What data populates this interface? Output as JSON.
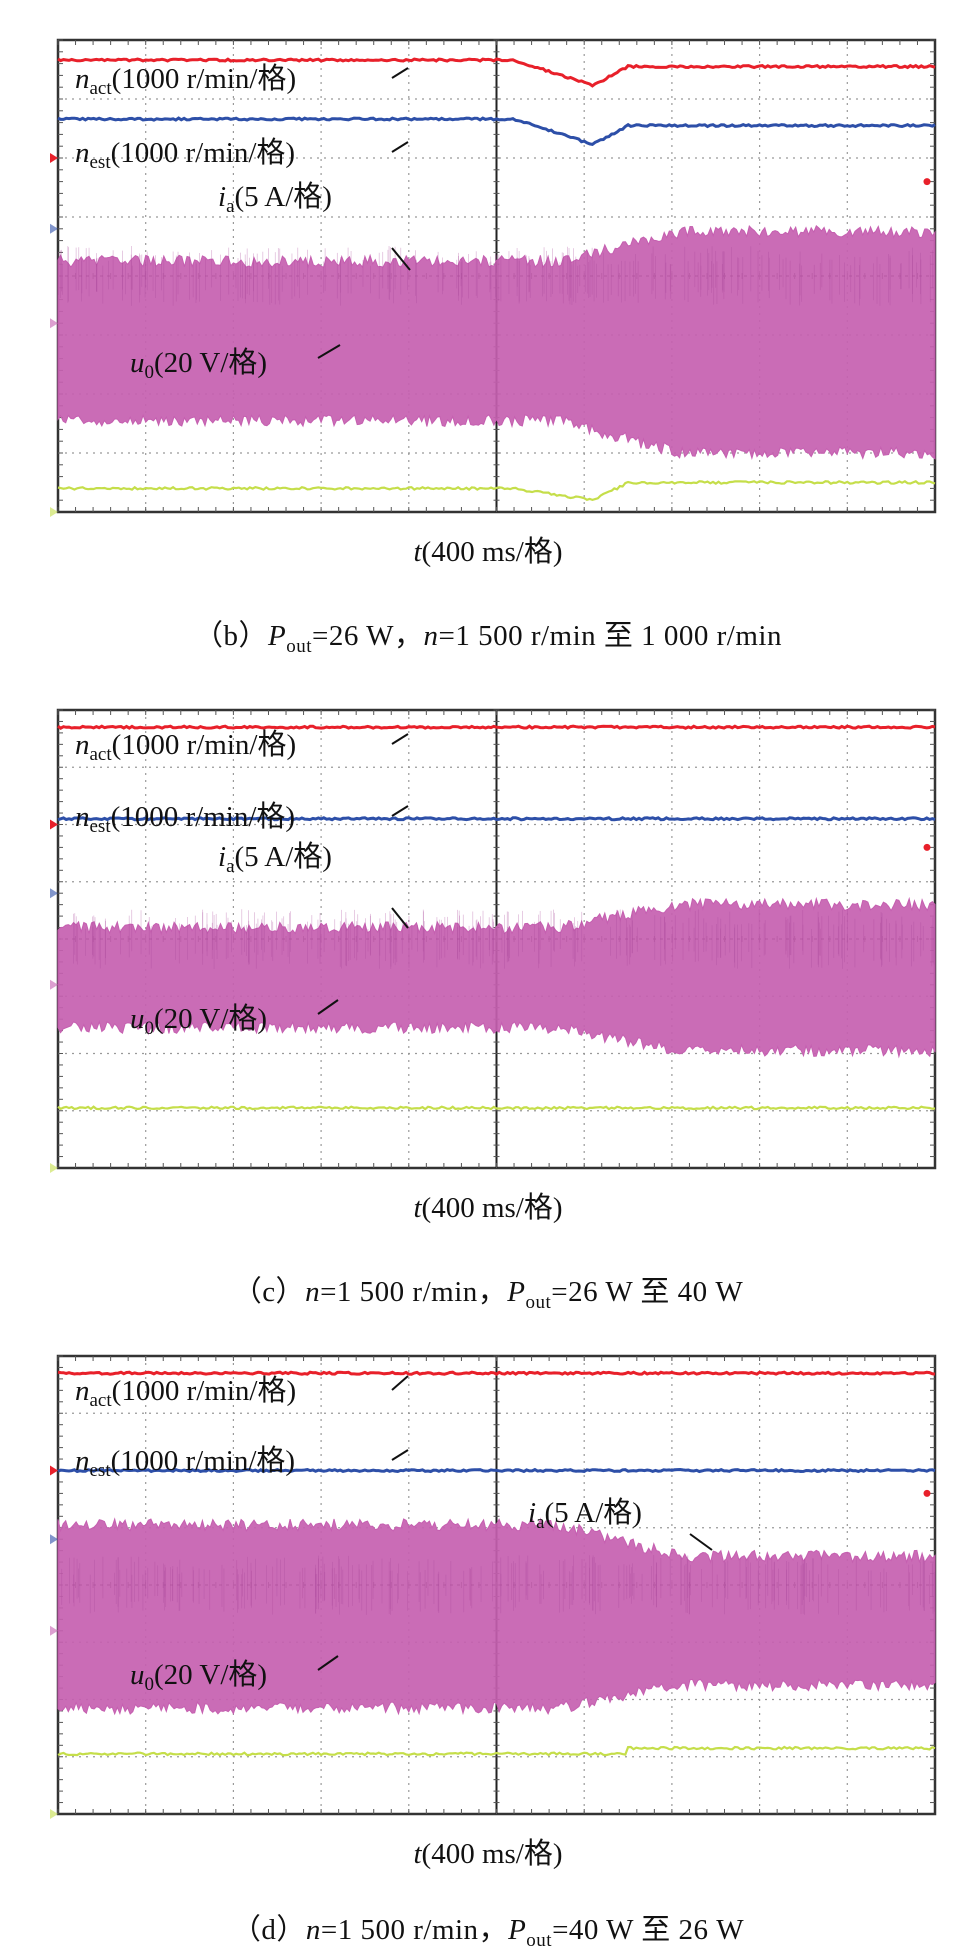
{
  "chart_data": [
    {
      "type": "line",
      "panel_label": "(b)",
      "caption": {
        "open": "（b）",
        "p_sym": "P",
        "p_sub": "out",
        "p_val": "=26 W，",
        "n_sym": "n",
        "n_val": "=1 500 r/min 至 1 000 r/min"
      },
      "xlabel": {
        "sym": "t",
        "rest": "(400 ms/格)"
      },
      "transition_index": 6.5,
      "series": [
        {
          "name": "n_act",
          "sym": "n",
          "sub": "act",
          "scale": "(1000 r/min/格)",
          "color": "#e8202a",
          "kind": "speed",
          "level": [
            0.34,
            1.34
          ],
          "after": [
            0.45,
            1.45
          ],
          "dip": 6.9
        },
        {
          "name": "n_est",
          "sym": "n",
          "sub": "est",
          "scale": "(1000 r/min/格)",
          "color": "#2d4fa8",
          "kind": "speed",
          "level": [
            1.34,
            2.34
          ],
          "after": [
            1.45,
            2.45
          ],
          "dip": 6.9
        },
        {
          "name": "i_a",
          "sym": "i",
          "sub": "a",
          "scale": "(5 A/格)",
          "color": "#c55fb0",
          "kind": "current",
          "before": [
            3.75,
            6.45
          ],
          "after": [
            3.25,
            7.0
          ]
        },
        {
          "name": "u_0",
          "sym": "u",
          "sub": "0",
          "scale": "(20 V/格)",
          "color": "#c5de4a",
          "kind": "voltage",
          "level": 7.6,
          "after": 7.5,
          "dip": 7.8
        }
      ]
    },
    {
      "type": "line",
      "panel_label": "(c)",
      "caption": {
        "open": "（c）",
        "n_sym": "n",
        "n_val": "=1 500 r/min，",
        "p_sym": "P",
        "p_sub": "out",
        "p_val": "=26 W 至 40 W"
      },
      "xlabel": {
        "sym": "t",
        "rest": "(400 ms/格)"
      },
      "transition_index": 6.5,
      "series": [
        {
          "name": "n_act",
          "sym": "n",
          "sub": "act",
          "scale": "(1000 r/min/格)",
          "color": "#e8202a",
          "kind": "speed",
          "level": 0.3
        },
        {
          "name": "n_est",
          "sym": "n",
          "sub": "est",
          "scale": "(1000 r/min/格)",
          "color": "#2d4fa8",
          "kind": "speed",
          "level": 1.9
        },
        {
          "name": "i_a",
          "sym": "i",
          "sub": "a",
          "scale": "(5 A/格)",
          "color": "#c55fb0",
          "kind": "current",
          "before": [
            3.8,
            5.55
          ],
          "after": [
            3.4,
            5.95
          ]
        },
        {
          "name": "u_0",
          "sym": "u",
          "sub": "0",
          "scale": "(20 V/格)",
          "color": "#c5de4a",
          "kind": "voltage",
          "level": 6.95,
          "after": 6.95
        }
      ]
    },
    {
      "type": "line",
      "panel_label": "(d)",
      "caption": {
        "open": "（d）",
        "n_sym": "n",
        "n_val": "=1 500 r/min，",
        "p_sym": "P",
        "p_sub": "out",
        "p_val": "=40 W 至 26 W"
      },
      "xlabel": {
        "sym": "t",
        "rest": "(400 ms/格)"
      },
      "transition_index": 6.5,
      "series": [
        {
          "name": "n_act",
          "sym": "n",
          "sub": "act",
          "scale": "(1000 r/min/格)",
          "color": "#e8202a",
          "kind": "speed",
          "level": 0.3
        },
        {
          "name": "n_est",
          "sym": "n",
          "sub": "est",
          "scale": "(1000 r/min/格)",
          "color": "#2d4fa8",
          "kind": "speed",
          "level": 2.0
        },
        {
          "name": "i_a",
          "sym": "i",
          "sub": "a",
          "scale": "(5 A/格)",
          "color": "#c55fb0",
          "kind": "current",
          "before": [
            2.95,
            6.15
          ],
          "after": [
            3.5,
            5.75
          ]
        },
        {
          "name": "u_0",
          "sym": "u",
          "sub": "0",
          "scale": "(20 V/格)",
          "color": "#c5de4a",
          "kind": "voltage",
          "level": 6.95,
          "after": 6.85
        }
      ]
    }
  ],
  "grid": {
    "x_divisions": 10,
    "y_divisions": 8,
    "minor_ticks": 5,
    "style": "dotted"
  }
}
